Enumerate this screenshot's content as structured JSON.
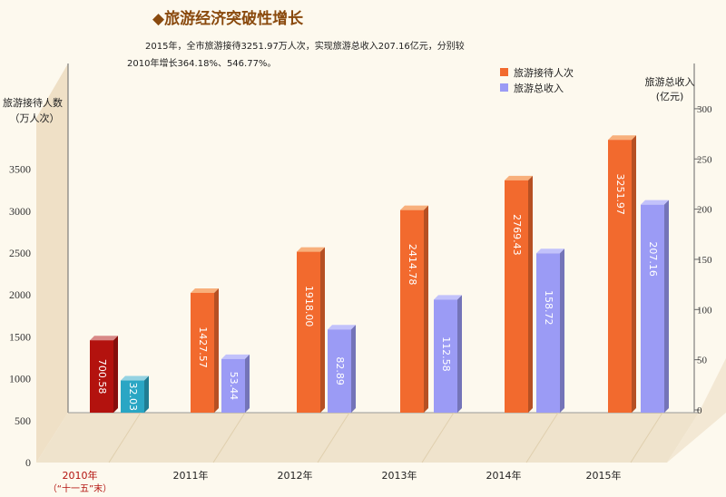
{
  "title": "◆旅游经济突破性增长",
  "description": [
    "2015年，全市旅游接待3251.97万人次，实现旅游总收入207.16亿元，分别较",
    "2010年增长364.18%、546.77%。"
  ],
  "chart_data": {
    "type": "bar",
    "categories": [
      "2010年",
      "2011年",
      "2012年",
      "2013年",
      "2014年",
      "2015年"
    ],
    "category_sublabels": [
      "（“十一五”末）",
      "",
      "",
      "",
      "",
      ""
    ],
    "series": [
      {
        "name": "旅游接待人次",
        "axis": "left",
        "color": "#f26a2e",
        "values": [
          700.58,
          1427.57,
          1918.0,
          2414.78,
          2769.43,
          3251.97
        ],
        "labels": [
          "700.58",
          "1427.57",
          "1918.00",
          "2414.78",
          "2769.43",
          "3251.97"
        ]
      },
      {
        "name": "旅游总收入",
        "axis": "right",
        "color": "#9b9bf5",
        "values": [
          32.03,
          53.44,
          82.89,
          112.58,
          158.72,
          207.16
        ],
        "labels": [
          "32.03",
          "53.44",
          "82.89",
          "112.58",
          "158.72",
          "207.16"
        ]
      }
    ],
    "first_category_colors": [
      "#b3120e",
      "#2aa6c4"
    ],
    "left_axis": {
      "label": [
        "旅游接待人数",
        "（万人次）"
      ],
      "ticks": [
        0,
        500,
        1000,
        1500,
        2000,
        2500,
        3000,
        3500
      ],
      "ylim": [
        0,
        3500
      ]
    },
    "right_axis": {
      "label": [
        "旅游总收入",
        "(亿元)"
      ],
      "ticks": [
        0,
        50,
        100,
        150,
        200,
        250,
        300
      ],
      "ylim": [
        0,
        300
      ]
    },
    "legend": "top-right"
  }
}
